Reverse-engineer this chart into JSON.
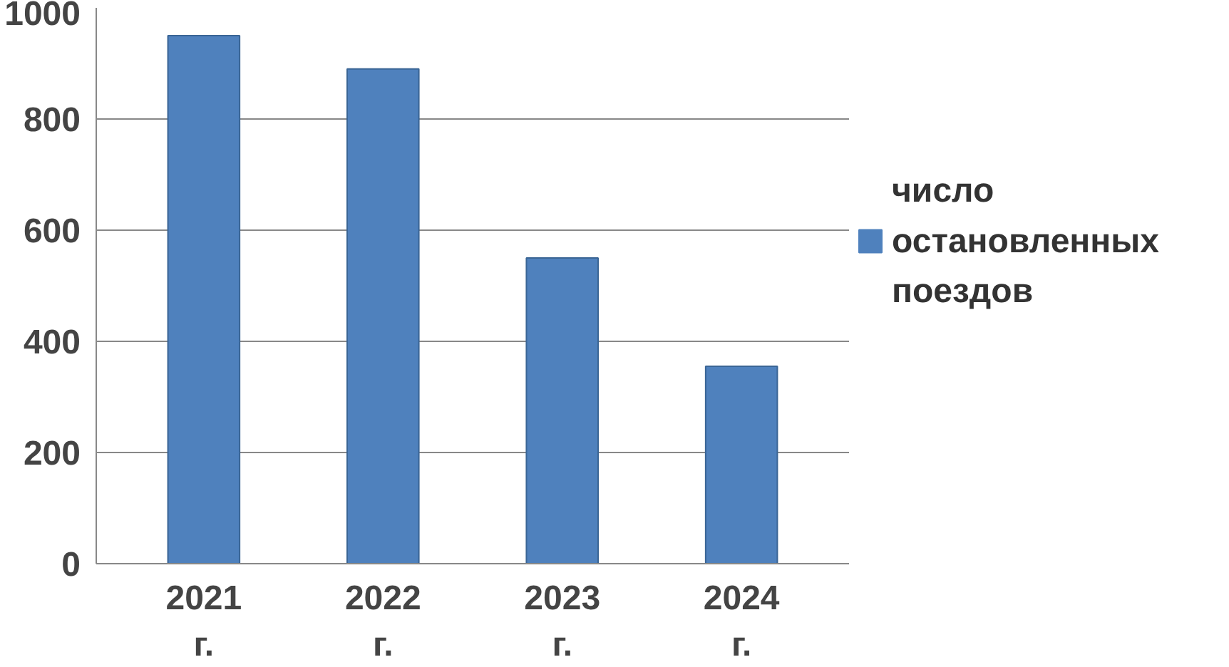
{
  "chart_data": {
    "type": "bar",
    "categories": [
      "2021 г.",
      "2022 г.",
      "2023 г.",
      "2024 г."
    ],
    "series": [
      {
        "name": "число остановленных поездов",
        "color": "#4f81bd",
        "values": [
          950,
          890,
          550,
          355
        ]
      }
    ],
    "ylim": [
      0,
      1000
    ],
    "yticks": [
      0,
      200,
      400,
      600,
      800,
      1000
    ],
    "grid": "y",
    "legend": "right"
  }
}
